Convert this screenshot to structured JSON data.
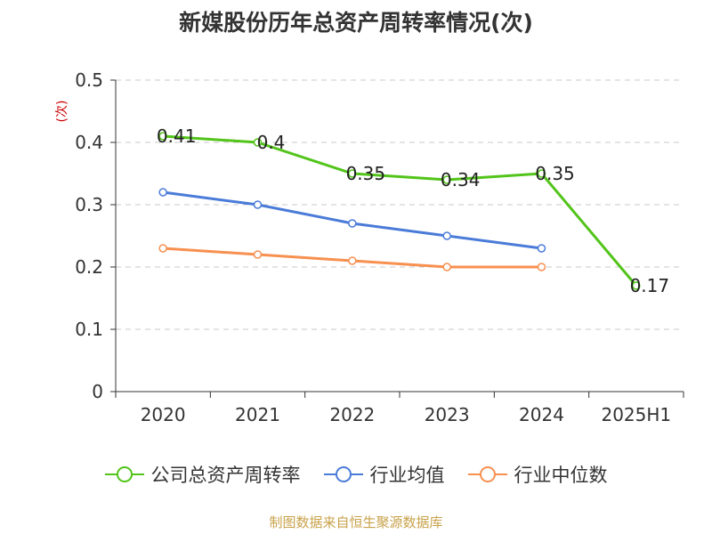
{
  "chart_data": {
    "type": "line",
    "title": "新媒股份历年总资产周转率情况(次)",
    "ylabel": "(次)",
    "xlabel": "",
    "categories": [
      "2020",
      "2021",
      "2022",
      "2023",
      "2024",
      "2025H1"
    ],
    "ylim": [
      0,
      0.5
    ],
    "yticks": [
      "0",
      "0.1",
      "0.2",
      "0.3",
      "0.4",
      "0.5"
    ],
    "grid": true,
    "legend_position": "bottom",
    "series": [
      {
        "name": "公司总资产周转率",
        "color": "#52c41a",
        "values": [
          0.41,
          0.4,
          0.35,
          0.34,
          0.35,
          0.17
        ],
        "labels": [
          "0.41",
          "0.4",
          "0.35",
          "0.34",
          "0.35",
          "0.17"
        ]
      },
      {
        "name": "行业均值",
        "color": "#4a7bd8",
        "values": [
          0.32,
          0.3,
          0.27,
          0.25,
          0.23,
          null
        ]
      },
      {
        "name": "行业中位数",
        "color": "#f79050",
        "values": [
          0.23,
          0.22,
          0.21,
          0.2,
          0.2,
          null
        ]
      }
    ]
  },
  "source_text": "制图数据来自恒生聚源数据库"
}
